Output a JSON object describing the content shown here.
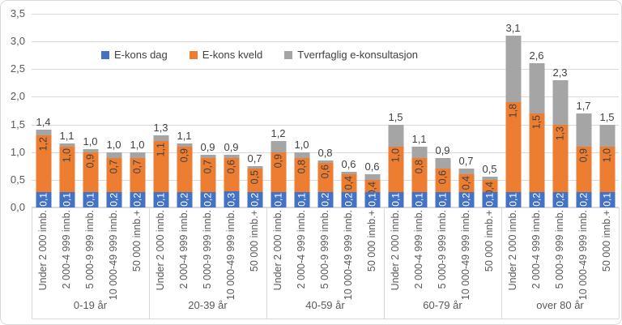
{
  "chart_data": {
    "type": "bar",
    "stacked": true,
    "title": "",
    "xlabel": "",
    "ylabel": "",
    "ylim": [
      0,
      3.5
    ],
    "ytick_step": 0.5,
    "ytick_labels": [
      "0,0",
      "0,5",
      "1,0",
      "1,5",
      "2,0",
      "2,5",
      "3,0",
      "3,5"
    ],
    "decimal_separator": ",",
    "grid": true,
    "legend_position": "top",
    "group_labels": [
      "0-19 år",
      "20-39 år",
      "40-59 år",
      "60-79 år",
      "over 80 år"
    ],
    "categories_per_group": [
      "Under 2 000 innb.",
      "2 000-4 999 innb.",
      "5 000-9 999 innb.",
      "10 000-49 999 innb.",
      "50 000 innb.+"
    ],
    "series": [
      {
        "name": "E-kons dag",
        "color": "#4472C4",
        "labels_shown": true,
        "label_text_color": "#FFFFFF",
        "values": [
          [
            0.1,
            0.1,
            0.1,
            0.2,
            0.2
          ],
          [
            0.1,
            0.2,
            0.2,
            0.3,
            0.2
          ],
          [
            0.1,
            0.1,
            0.2,
            0.2,
            0.1
          ],
          [
            0.1,
            0.1,
            0.1,
            0.2,
            0.1
          ],
          [
            0.1,
            0.2,
            0.2,
            0.2,
            0.1
          ]
        ]
      },
      {
        "name": "E-kons kveld",
        "color": "#ED7D31",
        "labels_shown": true,
        "label_text_color": "#404040",
        "values": [
          [
            1.2,
            1.0,
            0.9,
            0.7,
            0.7
          ],
          [
            1.1,
            0.9,
            0.7,
            0.6,
            0.5
          ],
          [
            0.9,
            0.8,
            0.6,
            0.4,
            0.4
          ],
          [
            1.0,
            0.8,
            0.6,
            0.4,
            0.4
          ],
          [
            1.8,
            1.5,
            1.3,
            0.9,
            1.0
          ]
        ]
      },
      {
        "name": "Tverrfaglig e-konsultasjon",
        "color": "#A5A5A5",
        "labels_shown": false,
        "note": "segment sizes estimated from bar heights; not labeled in chart",
        "values": [
          [
            0.1,
            0.05,
            0.05,
            0.1,
            0.1
          ],
          [
            0.1,
            0.05,
            0.05,
            0.05,
            0.05
          ],
          [
            0.2,
            0.1,
            0.05,
            0.05,
            0.1
          ],
          [
            0.4,
            0.2,
            0.2,
            0.1,
            0.05
          ],
          [
            1.2,
            0.9,
            0.8,
            0.6,
            0.4
          ]
        ]
      }
    ],
    "totals": [
      [
        1.4,
        1.1,
        1.0,
        1.0,
        1.0
      ],
      [
        1.3,
        1.1,
        0.9,
        0.9,
        0.7
      ],
      [
        1.2,
        1.0,
        0.8,
        0.6,
        0.6
      ],
      [
        1.5,
        1.1,
        0.9,
        0.7,
        0.5
      ],
      [
        3.1,
        2.6,
        2.3,
        1.7,
        1.5
      ]
    ],
    "colors": {
      "gridline": "#D9D9D9",
      "axis_text": "#595959",
      "data_label_text": "#404040",
      "chart_border": "#D9D9D9"
    }
  }
}
